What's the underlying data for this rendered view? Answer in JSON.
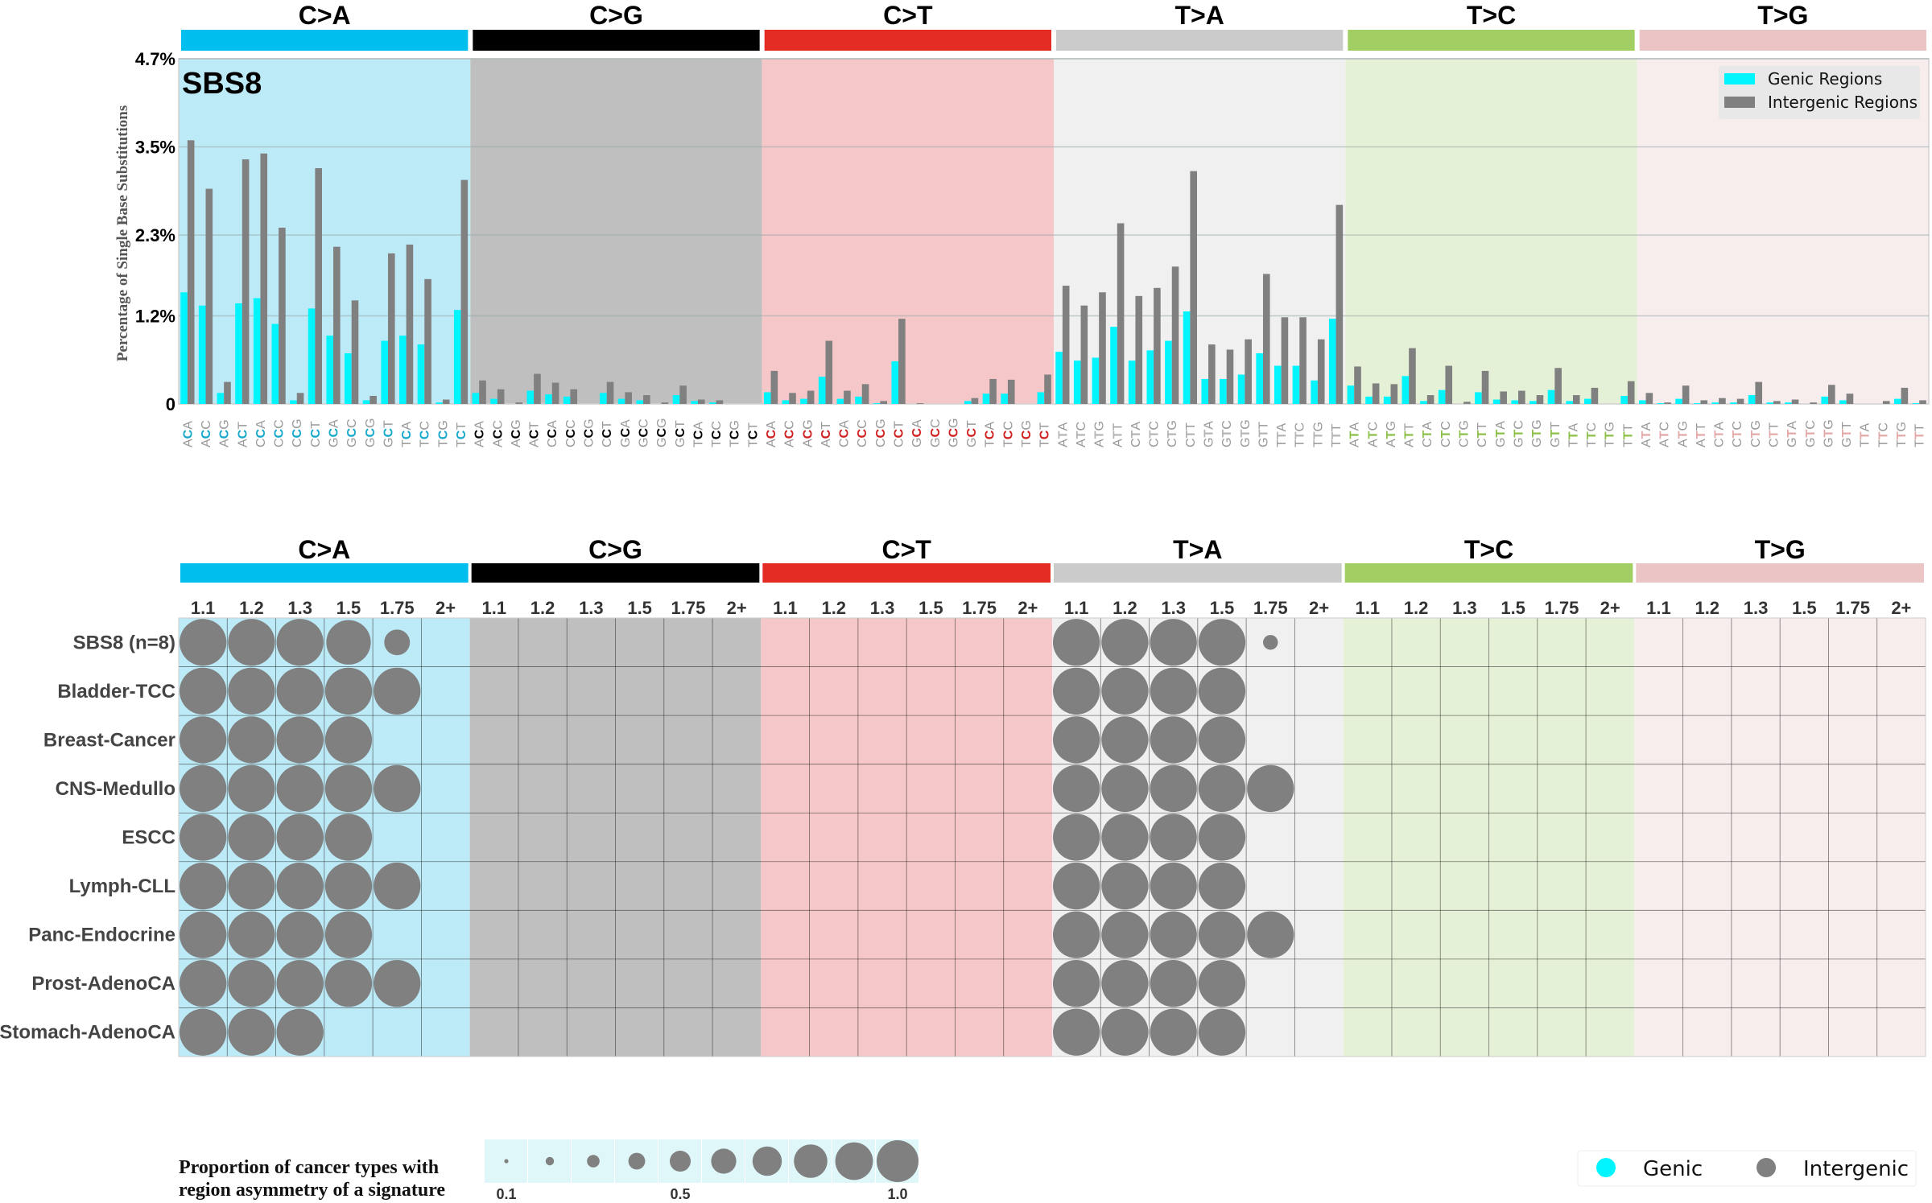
{
  "chart_data": [
    {
      "type": "bar",
      "title": "SBS8",
      "xlabel": "",
      "ylabel": "Percentage of Single Base Substitutions",
      "ylim": [
        0,
        4.7
      ],
      "yticks": [
        0,
        1.2,
        2.3,
        3.5,
        4.7
      ],
      "ytick_labels": [
        "0",
        "1.2%",
        "2.3%",
        "3.5%",
        "4.7%"
      ],
      "grid": true,
      "legend": {
        "placement": "top-right",
        "entries": [
          {
            "name": "Genic Regions",
            "color": "#00f5ff"
          },
          {
            "name": "Intergenic Regions",
            "color": "#808080"
          }
        ]
      },
      "groups": [
        {
          "name": "C>A",
          "color": "#00bfee",
          "bg": "#bdeaf7",
          "ref": "C",
          "label_color": "#17a8cc"
        },
        {
          "name": "C>G",
          "color": "#000000",
          "bg": "#bfbfbf",
          "ref": "C",
          "label_color": "#000000"
        },
        {
          "name": "C>T",
          "color": "#e42c25",
          "bg": "#f6c7c8",
          "ref": "C",
          "label_color": "#d02020"
        },
        {
          "name": "T>A",
          "color": "#cbcbcb",
          "bg": "#f0f0f0",
          "ref": "T",
          "label_color": "#b5b5b5"
        },
        {
          "name": "T>C",
          "color": "#a1cf63",
          "bg": "#e5f1d6",
          "ref": "T",
          "label_color": "#8cc04a"
        },
        {
          "name": "T>G",
          "color": "#ebc5c5",
          "bg": "#f7eded",
          "ref": "T",
          "label_color": "#e3a8a8"
        }
      ],
      "context_flanks": [
        "A_A",
        "A_C",
        "A_G",
        "A_T",
        "C_A",
        "C_C",
        "C_G",
        "C_T",
        "G_A",
        "G_C",
        "G_G",
        "G_T",
        "T_A",
        "T_C",
        "T_G",
        "T_T"
      ],
      "series": [
        {
          "name": "Genic Regions",
          "values": [
            1.52,
            1.34,
            0.15,
            1.37,
            1.44,
            1.09,
            0.05,
            1.3,
            0.93,
            0.69,
            0.05,
            0.86,
            0.93,
            0.81,
            0.02,
            1.28,
            0.15,
            0.07,
            0.0,
            0.18,
            0.13,
            0.1,
            0.0,
            0.15,
            0.07,
            0.05,
            0.0,
            0.12,
            0.04,
            0.02,
            0.0,
            0.0,
            0.16,
            0.05,
            0.07,
            0.37,
            0.07,
            0.1,
            0.01,
            0.58,
            0.0,
            0.0,
            0.0,
            0.04,
            0.14,
            0.14,
            0.0,
            0.16,
            0.71,
            0.59,
            0.63,
            1.05,
            0.59,
            0.73,
            0.86,
            1.26,
            0.34,
            0.34,
            0.4,
            0.69,
            0.52,
            0.52,
            0.32,
            1.16,
            0.25,
            0.1,
            0.1,
            0.38,
            0.04,
            0.19,
            0.0,
            0.16,
            0.06,
            0.05,
            0.04,
            0.19,
            0.04,
            0.07,
            0.0,
            0.11,
            0.05,
            0.01,
            0.07,
            0.01,
            0.02,
            0.02,
            0.12,
            0.02,
            0.02,
            0.0,
            0.1,
            0.05,
            0.0,
            0.0,
            0.07,
            0.01
          ]
        },
        {
          "name": "Intergenic Regions",
          "values": [
            3.59,
            2.93,
            0.3,
            3.33,
            3.41,
            2.4,
            0.15,
            3.21,
            2.14,
            1.41,
            0.11,
            2.05,
            2.17,
            1.7,
            0.06,
            3.05,
            0.32,
            0.2,
            0.02,
            0.41,
            0.29,
            0.2,
            0.0,
            0.3,
            0.16,
            0.12,
            0.02,
            0.25,
            0.06,
            0.05,
            0.0,
            0.0,
            0.45,
            0.15,
            0.18,
            0.86,
            0.18,
            0.27,
            0.04,
            1.16,
            0.01,
            0.0,
            0.0,
            0.08,
            0.34,
            0.33,
            0.0,
            0.4,
            1.61,
            1.34,
            1.52,
            2.46,
            1.47,
            1.58,
            1.87,
            3.17,
            0.81,
            0.74,
            0.88,
            1.77,
            1.18,
            1.18,
            0.88,
            2.71,
            0.51,
            0.28,
            0.27,
            0.76,
            0.12,
            0.52,
            0.03,
            0.45,
            0.17,
            0.18,
            0.12,
            0.49,
            0.12,
            0.22,
            0.0,
            0.31,
            0.15,
            0.02,
            0.25,
            0.05,
            0.08,
            0.07,
            0.3,
            0.04,
            0.06,
            0.02,
            0.26,
            0.14,
            0.0,
            0.04,
            0.22,
            0.05
          ]
        }
      ]
    },
    {
      "type": "scatter",
      "subtype": "bubble-matrix",
      "title": "",
      "groups": [
        "C>A",
        "C>G",
        "C>T",
        "T>A",
        "T>C",
        "T>G"
      ],
      "fold_columns": [
        "1.1",
        "1.2",
        "1.3",
        "1.5",
        "1.75",
        "2+"
      ],
      "rows": [
        "SBS8 (n=8)",
        "Bladder-TCC",
        "Breast-Cancer",
        "CNS-Medullo",
        "ESCC",
        "Lymph-CLL",
        "Panc-Endocrine",
        "Prost-AdenoCA",
        "Stomach-AdenoCA"
      ],
      "bubble_color": "#808080",
      "values": [
        [
          [
            1.0,
            1.0,
            1.0,
            0.9,
            0.3,
            0
          ],
          [
            0,
            0,
            0,
            0,
            0,
            0
          ],
          [
            0,
            0,
            0,
            0,
            0,
            0
          ],
          [
            1.0,
            1.0,
            1.0,
            1.0,
            0.1,
            0
          ],
          [
            0,
            0,
            0,
            0,
            0,
            0
          ],
          [
            0,
            0,
            0,
            0,
            0,
            0
          ]
        ],
        [
          [
            1.0,
            1.0,
            1.0,
            1.0,
            1.0,
            0
          ],
          [
            0,
            0,
            0,
            0,
            0,
            0
          ],
          [
            0,
            0,
            0,
            0,
            0,
            0
          ],
          [
            1.0,
            1.0,
            1.0,
            1.0,
            0,
            0
          ],
          [
            0,
            0,
            0,
            0,
            0,
            0
          ],
          [
            0,
            0,
            0,
            0,
            0,
            0
          ]
        ],
        [
          [
            1.0,
            1.0,
            1.0,
            1.0,
            0,
            0
          ],
          [
            0,
            0,
            0,
            0,
            0,
            0
          ],
          [
            0,
            0,
            0,
            0,
            0,
            0
          ],
          [
            1.0,
            1.0,
            1.0,
            1.0,
            0,
            0
          ],
          [
            0,
            0,
            0,
            0,
            0,
            0
          ],
          [
            0,
            0,
            0,
            0,
            0,
            0
          ]
        ],
        [
          [
            1.0,
            1.0,
            1.0,
            1.0,
            1.0,
            0
          ],
          [
            0,
            0,
            0,
            0,
            0,
            0
          ],
          [
            0,
            0,
            0,
            0,
            0,
            0
          ],
          [
            1.0,
            1.0,
            1.0,
            1.0,
            1.0,
            0
          ],
          [
            0,
            0,
            0,
            0,
            0,
            0
          ],
          [
            0,
            0,
            0,
            0,
            0,
            0
          ]
        ],
        [
          [
            1.0,
            1.0,
            1.0,
            1.0,
            0,
            0
          ],
          [
            0,
            0,
            0,
            0,
            0,
            0
          ],
          [
            0,
            0,
            0,
            0,
            0,
            0
          ],
          [
            1.0,
            1.0,
            1.0,
            1.0,
            0,
            0
          ],
          [
            0,
            0,
            0,
            0,
            0,
            0
          ],
          [
            0,
            0,
            0,
            0,
            0,
            0
          ]
        ],
        [
          [
            1.0,
            1.0,
            1.0,
            1.0,
            1.0,
            0
          ],
          [
            0,
            0,
            0,
            0,
            0,
            0
          ],
          [
            0,
            0,
            0,
            0,
            0,
            0
          ],
          [
            1.0,
            1.0,
            1.0,
            1.0,
            0,
            0
          ],
          [
            0,
            0,
            0,
            0,
            0,
            0
          ],
          [
            0,
            0,
            0,
            0,
            0,
            0
          ]
        ],
        [
          [
            1.0,
            1.0,
            1.0,
            1.0,
            0,
            0
          ],
          [
            0,
            0,
            0,
            0,
            0,
            0
          ],
          [
            0,
            0,
            0,
            0,
            0,
            0
          ],
          [
            1.0,
            1.0,
            1.0,
            1.0,
            1.0,
            0
          ],
          [
            0,
            0,
            0,
            0,
            0,
            0
          ],
          [
            0,
            0,
            0,
            0,
            0,
            0
          ]
        ],
        [
          [
            1.0,
            1.0,
            1.0,
            1.0,
            1.0,
            0
          ],
          [
            0,
            0,
            0,
            0,
            0,
            0
          ],
          [
            0,
            0,
            0,
            0,
            0,
            0
          ],
          [
            1.0,
            1.0,
            1.0,
            1.0,
            0,
            0
          ],
          [
            0,
            0,
            0,
            0,
            0,
            0
          ],
          [
            0,
            0,
            0,
            0,
            0,
            0
          ]
        ],
        [
          [
            1.0,
            1.0,
            1.0,
            0,
            0,
            0
          ],
          [
            0,
            0,
            0,
            0,
            0,
            0
          ],
          [
            0,
            0,
            0,
            0,
            0,
            0
          ],
          [
            1.0,
            1.0,
            1.0,
            1.0,
            0,
            0
          ],
          [
            0,
            0,
            0,
            0,
            0,
            0
          ],
          [
            0,
            0,
            0,
            0,
            0,
            0
          ]
        ]
      ],
      "size_legend": {
        "title_line1": "Proportion of cancer types with",
        "title_line2": "region asymmetry of a signature",
        "steps": [
          0.1,
          0.2,
          0.3,
          0.4,
          0.5,
          0.6,
          0.7,
          0.8,
          0.9,
          1.0
        ],
        "tick_labels": [
          {
            "value": 0.1,
            "label": "0.1"
          },
          {
            "value": 0.5,
            "label": "0.5"
          },
          {
            "value": 1.0,
            "label": "1.0"
          }
        ],
        "bg": "#dff7f9"
      },
      "color_legend": {
        "placement": "bottom-right",
        "entries": [
          {
            "name": "Genic",
            "color": "#00f5ff"
          },
          {
            "name": "Intergenic",
            "color": "#808080"
          }
        ]
      }
    }
  ]
}
